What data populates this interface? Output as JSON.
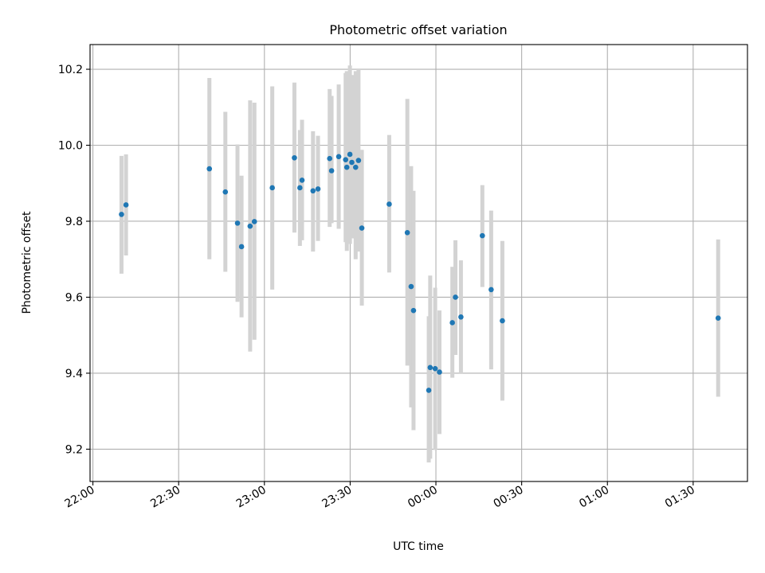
{
  "chart_data": {
    "type": "scatter",
    "title": "Photometric offset variation",
    "xlabel": "UTC time",
    "ylabel": "Photometric offset",
    "xlim": [
      "21:59",
      "01:49"
    ],
    "ylim": [
      9.115,
      10.265
    ],
    "x_ticks": [
      "22:00",
      "22:30",
      "23:00",
      "23:30",
      "00:00",
      "00:30",
      "01:00",
      "01:30"
    ],
    "y_ticks": [
      "9.2",
      "9.4",
      "9.6",
      "9.8",
      "10.0",
      "10.2"
    ],
    "grid": true,
    "colors": {
      "points": "#1f77b4",
      "errorbars": "#d3d3d3"
    },
    "points": [
      {
        "t": "22:10:00",
        "y": 9.818,
        "lo": 9.662,
        "hi": 9.972
      },
      {
        "t": "22:11:35",
        "y": 9.843,
        "lo": 9.71,
        "hi": 9.976
      },
      {
        "t": "22:40:45",
        "y": 9.938,
        "lo": 9.7,
        "hi": 10.177
      },
      {
        "t": "22:46:20",
        "y": 9.877,
        "lo": 9.667,
        "hi": 10.088
      },
      {
        "t": "22:50:35",
        "y": 9.795,
        "lo": 9.588,
        "hi": 10.002
      },
      {
        "t": "22:52:00",
        "y": 9.733,
        "lo": 9.547,
        "hi": 9.92
      },
      {
        "t": "22:55:00",
        "y": 9.787,
        "lo": 9.457,
        "hi": 10.118
      },
      {
        "t": "22:56:30",
        "y": 9.799,
        "lo": 9.488,
        "hi": 10.112
      },
      {
        "t": "23:02:45",
        "y": 9.888,
        "lo": 9.62,
        "hi": 10.155
      },
      {
        "t": "23:10:30",
        "y": 9.967,
        "lo": 9.77,
        "hi": 10.165
      },
      {
        "t": "23:12:25",
        "y": 9.888,
        "lo": 9.735,
        "hi": 10.04
      },
      {
        "t": "23:13:10",
        "y": 9.908,
        "lo": 9.75,
        "hi": 10.067
      },
      {
        "t": "23:17:00",
        "y": 9.88,
        "lo": 9.72,
        "hi": 10.037
      },
      {
        "t": "23:18:45",
        "y": 9.885,
        "lo": 9.748,
        "hi": 10.025
      },
      {
        "t": "23:22:50",
        "y": 9.965,
        "lo": 9.785,
        "hi": 10.148
      },
      {
        "t": "23:23:30",
        "y": 9.933,
        "lo": 9.795,
        "hi": 10.13
      },
      {
        "t": "23:26:00",
        "y": 9.97,
        "lo": 9.78,
        "hi": 10.16
      },
      {
        "t": "23:28:25",
        "y": 9.962,
        "lo": 9.745,
        "hi": 10.19
      },
      {
        "t": "23:28:50",
        "y": 9.942,
        "lo": 9.722,
        "hi": 10.195
      },
      {
        "t": "23:29:55",
        "y": 9.976,
        "lo": 9.74,
        "hi": 10.21
      },
      {
        "t": "23:30:35",
        "y": 9.955,
        "lo": 9.755,
        "hi": 10.185
      },
      {
        "t": "23:31:55",
        "y": 9.942,
        "lo": 9.7,
        "hi": 10.195
      },
      {
        "t": "23:32:55",
        "y": 9.96,
        "lo": 9.72,
        "hi": 10.2
      },
      {
        "t": "23:34:05",
        "y": 9.782,
        "lo": 9.578,
        "hi": 9.988
      },
      {
        "t": "23:43:40",
        "y": 9.845,
        "lo": 9.665,
        "hi": 10.027
      },
      {
        "t": "23:50:00",
        "y": 9.77,
        "lo": 9.42,
        "hi": 10.122
      },
      {
        "t": "23:51:20",
        "y": 9.628,
        "lo": 9.31,
        "hi": 9.945
      },
      {
        "t": "23:52:10",
        "y": 9.565,
        "lo": 9.25,
        "hi": 9.88
      },
      {
        "t": "23:57:30",
        "y": 9.355,
        "lo": 9.165,
        "hi": 9.55
      },
      {
        "t": "23:58:00",
        "y": 9.415,
        "lo": 9.175,
        "hi": 9.657
      },
      {
        "t": "23:59:45",
        "y": 9.412,
        "lo": 9.198,
        "hi": 9.625
      },
      {
        "t": "00:01:15",
        "y": 9.403,
        "lo": 9.24,
        "hi": 9.565
      },
      {
        "t": "00:05:45",
        "y": 9.533,
        "lo": 9.388,
        "hi": 9.68
      },
      {
        "t": "00:06:50",
        "y": 9.6,
        "lo": 9.448,
        "hi": 9.75
      },
      {
        "t": "00:08:45",
        "y": 9.548,
        "lo": 9.398,
        "hi": 9.697
      },
      {
        "t": "00:16:15",
        "y": 9.762,
        "lo": 9.627,
        "hi": 9.895
      },
      {
        "t": "00:19:20",
        "y": 9.62,
        "lo": 9.41,
        "hi": 9.828
      },
      {
        "t": "00:23:15",
        "y": 9.538,
        "lo": 9.328,
        "hi": 9.748
      },
      {
        "t": "01:38:45",
        "y": 9.545,
        "lo": 9.338,
        "hi": 9.752
      }
    ]
  }
}
